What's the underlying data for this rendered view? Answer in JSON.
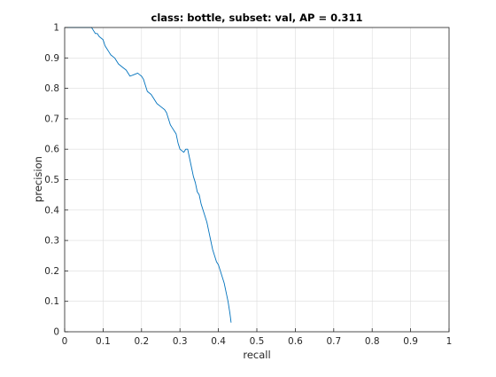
{
  "chart_data": {
    "type": "line",
    "title": "class: bottle, subset: val, AP = 0.311",
    "xlabel": "recall",
    "ylabel": "precision",
    "xlim": [
      0,
      1
    ],
    "ylim": [
      0,
      1
    ],
    "xticks": [
      0,
      0.1,
      0.2,
      0.3,
      0.4,
      0.5,
      0.6,
      0.7,
      0.8,
      0.9,
      1
    ],
    "yticks": [
      0,
      0.1,
      0.2,
      0.3,
      0.4,
      0.5,
      0.6,
      0.7,
      0.8,
      0.9,
      1
    ],
    "xtick_labels": [
      "0",
      "0.1",
      "0.2",
      "0.3",
      "0.4",
      "0.5",
      "0.6",
      "0.7",
      "0.8",
      "0.9",
      "1"
    ],
    "ytick_labels": [
      "0",
      "0.1",
      "0.2",
      "0.3",
      "0.4",
      "0.5",
      "0.6",
      "0.7",
      "0.8",
      "0.9",
      "1"
    ],
    "grid": true,
    "line_color": "#0072bd",
    "series": [
      {
        "x": [
          0.0,
          0.07,
          0.075,
          0.08,
          0.085,
          0.09,
          0.095,
          0.1,
          0.105,
          0.11,
          0.115,
          0.12,
          0.13,
          0.14,
          0.15,
          0.16,
          0.17,
          0.18,
          0.19,
          0.195,
          0.2,
          0.205,
          0.21,
          0.215,
          0.22,
          0.225,
          0.23,
          0.24,
          0.25,
          0.26,
          0.265,
          0.27,
          0.275,
          0.28,
          0.285,
          0.29,
          0.295,
          0.3,
          0.305,
          0.31,
          0.315,
          0.32,
          0.325,
          0.33,
          0.335,
          0.34,
          0.345,
          0.35,
          0.355,
          0.36,
          0.365,
          0.37,
          0.375,
          0.38,
          0.385,
          0.39,
          0.395,
          0.4,
          0.405,
          0.41,
          0.415,
          0.42,
          0.425,
          0.43,
          0.433
        ],
        "y": [
          1.0,
          1.0,
          0.99,
          0.98,
          0.98,
          0.97,
          0.965,
          0.96,
          0.94,
          0.93,
          0.92,
          0.91,
          0.9,
          0.88,
          0.87,
          0.86,
          0.84,
          0.845,
          0.85,
          0.845,
          0.84,
          0.83,
          0.81,
          0.79,
          0.785,
          0.78,
          0.77,
          0.75,
          0.74,
          0.73,
          0.72,
          0.7,
          0.68,
          0.67,
          0.66,
          0.65,
          0.62,
          0.6,
          0.595,
          0.59,
          0.6,
          0.6,
          0.57,
          0.54,
          0.51,
          0.49,
          0.46,
          0.45,
          0.42,
          0.4,
          0.38,
          0.36,
          0.33,
          0.3,
          0.27,
          0.25,
          0.23,
          0.22,
          0.2,
          0.18,
          0.16,
          0.13,
          0.1,
          0.06,
          0.03
        ]
      }
    ]
  }
}
